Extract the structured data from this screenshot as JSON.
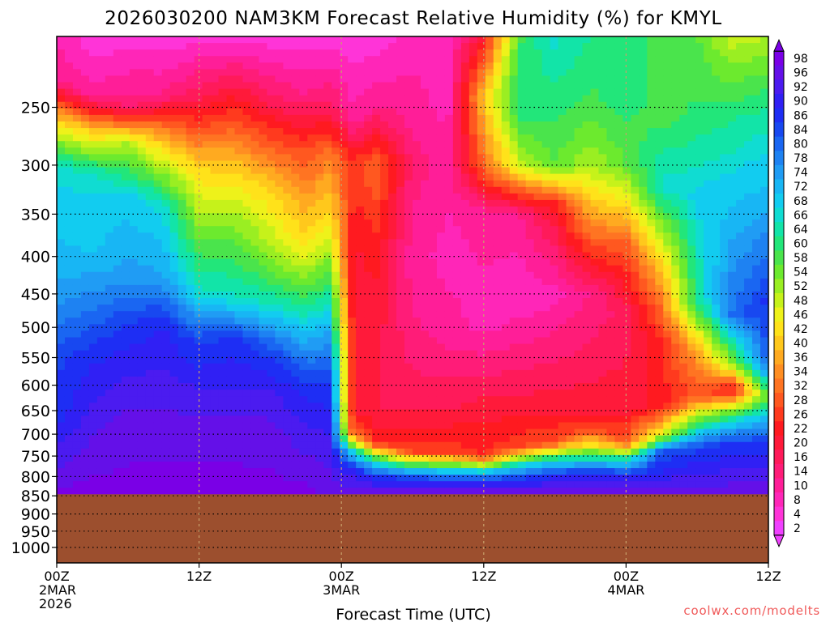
{
  "chart_data": {
    "type": "heatmap",
    "title": "2026030200 NAM3KM Forecast Relative Humidity (%) for KMYL",
    "xlabel": "Forecast Time (UTC)",
    "ylabel": "",
    "credit": "coolwx.com/modelts",
    "x_ticks": [
      {
        "hour": 0,
        "line1": "00Z",
        "line2": "2MAR",
        "line3": "2026"
      },
      {
        "hour": 12,
        "line1": "12Z",
        "line2": "",
        "line3": ""
      },
      {
        "hour": 24,
        "line1": "00Z",
        "line2": "3MAR",
        "line3": ""
      },
      {
        "hour": 36,
        "line1": "12Z",
        "line2": "",
        "line3": ""
      },
      {
        "hour": 48,
        "line1": "00Z",
        "line2": "4MAR",
        "line3": ""
      },
      {
        "hour": 60,
        "line1": "12Z",
        "line2": "",
        "line3": ""
      }
    ],
    "xlim": [
      0,
      60
    ],
    "y_ticks": [
      "250",
      "300",
      "350",
      "400",
      "450",
      "500",
      "550",
      "600",
      "650",
      "700",
      "750",
      "800",
      "850",
      "900",
      "950",
      "1000"
    ],
    "y_tick_values": [
      250,
      300,
      350,
      400,
      450,
      500,
      550,
      600,
      650,
      700,
      750,
      800,
      850,
      900,
      950,
      1000
    ],
    "ylim": [
      200,
      1050
    ],
    "y_scale": "log",
    "ground_level_hpa": 846,
    "ground_color": "#9c4f2e",
    "grid": true,
    "colorbar": {
      "labels": [
        "98",
        "96",
        "92",
        "90",
        "86",
        "84",
        "80",
        "78",
        "74",
        "72",
        "68",
        "66",
        "64",
        "60",
        "58",
        "54",
        "52",
        "48",
        "46",
        "42",
        "40",
        "36",
        "34",
        "32",
        "28",
        "26",
        "22",
        "20",
        "16",
        "14",
        "10",
        "8",
        "4",
        "2"
      ],
      "colors": [
        "#7a00e6",
        "#6410e8",
        "#4b1bf0",
        "#3020f4",
        "#1e2ef4",
        "#1848f0",
        "#1a66f2",
        "#1e82f2",
        "#209cf4",
        "#18b6f4",
        "#12ccf0",
        "#10dcd2",
        "#12e4a8",
        "#22e67a",
        "#4ae44c",
        "#6cea2e",
        "#9aee22",
        "#c6f21a",
        "#eef21a",
        "#ffe21a",
        "#ffc81c",
        "#ffaa20",
        "#ff8e22",
        "#ff7422",
        "#ff5820",
        "#ff3a1e",
        "#ff1a20",
        "#ff1a3a",
        "#ff1a5a",
        "#ff1c78",
        "#ff1e98",
        "#ff26b8",
        "#ff34d8",
        "#f040ff"
      ]
    },
    "profiles": [
      {
        "hour": 0,
        "rh": [
          [
            200,
            8
          ],
          [
            230,
            12
          ],
          [
            260,
            40
          ],
          [
            300,
            66
          ],
          [
            380,
            70
          ],
          [
            450,
            74
          ],
          [
            550,
            84
          ],
          [
            650,
            86
          ],
          [
            750,
            92
          ],
          [
            846,
            98
          ]
        ]
      },
      {
        "hour": 3,
        "rh": [
          [
            200,
            4
          ],
          [
            240,
            10
          ],
          [
            270,
            40
          ],
          [
            310,
            66
          ],
          [
            400,
            70
          ],
          [
            480,
            80
          ],
          [
            560,
            88
          ],
          [
            660,
            92
          ],
          [
            760,
            96
          ],
          [
            846,
            98
          ]
        ]
      },
      {
        "hour": 6,
        "rh": [
          [
            200,
            4
          ],
          [
            250,
            14
          ],
          [
            280,
            50
          ],
          [
            330,
            68
          ],
          [
            420,
            74
          ],
          [
            500,
            86
          ],
          [
            600,
            92
          ],
          [
            700,
            96
          ],
          [
            846,
            98
          ]
        ]
      },
      {
        "hour": 9,
        "rh": [
          [
            200,
            4
          ],
          [
            240,
            12
          ],
          [
            270,
            34
          ],
          [
            340,
            66
          ],
          [
            430,
            74
          ],
          [
            500,
            88
          ],
          [
            600,
            92
          ],
          [
            700,
            96
          ],
          [
            846,
            98
          ]
        ]
      },
      {
        "hour": 12,
        "rh": [
          [
            200,
            4
          ],
          [
            250,
            20
          ],
          [
            300,
            40
          ],
          [
            380,
            56
          ],
          [
            450,
            66
          ],
          [
            520,
            84
          ],
          [
            620,
            92
          ],
          [
            700,
            96
          ],
          [
            846,
            98
          ]
        ]
      },
      {
        "hour": 15,
        "rh": [
          [
            200,
            4
          ],
          [
            250,
            24
          ],
          [
            310,
            42
          ],
          [
            380,
            56
          ],
          [
            460,
            66
          ],
          [
            520,
            86
          ],
          [
            620,
            92
          ],
          [
            700,
            96
          ],
          [
            846,
            98
          ]
        ]
      },
      {
        "hour": 18,
        "rh": [
          [
            200,
            4
          ],
          [
            250,
            18
          ],
          [
            320,
            40
          ],
          [
            400,
            52
          ],
          [
            470,
            66
          ],
          [
            540,
            84
          ],
          [
            620,
            92
          ],
          [
            720,
            96
          ],
          [
            846,
            98
          ]
        ]
      },
      {
        "hour": 21,
        "rh": [
          [
            200,
            4
          ],
          [
            240,
            12
          ],
          [
            290,
            28
          ],
          [
            380,
            42
          ],
          [
            460,
            60
          ],
          [
            540,
            76
          ],
          [
            600,
            86
          ],
          [
            700,
            92
          ],
          [
            846,
            98
          ]
        ]
      },
      {
        "hour": 23,
        "rh": [
          [
            200,
            4
          ],
          [
            250,
            16
          ],
          [
            290,
            32
          ],
          [
            350,
            42
          ],
          [
            420,
            56
          ],
          [
            500,
            72
          ],
          [
            580,
            84
          ],
          [
            680,
            90
          ],
          [
            846,
            96
          ]
        ]
      },
      {
        "hour": 25,
        "rh": [
          [
            200,
            4
          ],
          [
            260,
            10
          ],
          [
            300,
            26
          ],
          [
            400,
            20
          ],
          [
            550,
            22
          ],
          [
            650,
            20
          ],
          [
            700,
            30
          ],
          [
            740,
            66
          ],
          [
            780,
            88
          ],
          [
            846,
            96
          ]
        ]
      },
      {
        "hour": 27,
        "rh": [
          [
            200,
            4
          ],
          [
            250,
            12
          ],
          [
            300,
            30
          ],
          [
            400,
            22
          ],
          [
            550,
            18
          ],
          [
            650,
            18
          ],
          [
            720,
            24
          ],
          [
            760,
            60
          ],
          [
            800,
            86
          ],
          [
            846,
            96
          ]
        ]
      },
      {
        "hour": 30,
        "rh": [
          [
            200,
            8
          ],
          [
            250,
            10
          ],
          [
            300,
            14
          ],
          [
            400,
            10
          ],
          [
            550,
            14
          ],
          [
            650,
            18
          ],
          [
            740,
            26
          ],
          [
            780,
            66
          ],
          [
            810,
            88
          ],
          [
            846,
            96
          ]
        ]
      },
      {
        "hour": 33,
        "rh": [
          [
            200,
            8
          ],
          [
            250,
            8
          ],
          [
            300,
            10
          ],
          [
            400,
            8
          ],
          [
            500,
            10
          ],
          [
            650,
            18
          ],
          [
            740,
            26
          ],
          [
            790,
            72
          ],
          [
            820,
            90
          ],
          [
            846,
            96
          ]
        ]
      },
      {
        "hour": 36,
        "rh": [
          [
            200,
            20
          ],
          [
            240,
            40
          ],
          [
            300,
            30
          ],
          [
            350,
            10
          ],
          [
            500,
            8
          ],
          [
            650,
            20
          ],
          [
            750,
            24
          ],
          [
            790,
            70
          ],
          [
            820,
            90
          ],
          [
            846,
            96
          ]
        ]
      },
      {
        "hour": 39,
        "rh": [
          [
            200,
            58
          ],
          [
            250,
            62
          ],
          [
            300,
            48
          ],
          [
            350,
            12
          ],
          [
            450,
            6
          ],
          [
            650,
            20
          ],
          [
            730,
            26
          ],
          [
            770,
            66
          ],
          [
            810,
            88
          ],
          [
            846,
            96
          ]
        ]
      },
      {
        "hour": 42,
        "rh": [
          [
            200,
            66
          ],
          [
            250,
            60
          ],
          [
            300,
            56
          ],
          [
            340,
            22
          ],
          [
            450,
            8
          ],
          [
            650,
            20
          ],
          [
            720,
            28
          ],
          [
            760,
            66
          ],
          [
            800,
            88
          ],
          [
            846,
            96
          ]
        ]
      },
      {
        "hour": 45,
        "rh": [
          [
            200,
            62
          ],
          [
            250,
            58
          ],
          [
            300,
            50
          ],
          [
            360,
            34
          ],
          [
            450,
            12
          ],
          [
            650,
            20
          ],
          [
            700,
            30
          ],
          [
            750,
            60
          ],
          [
            790,
            86
          ],
          [
            846,
            96
          ]
        ]
      },
      {
        "hour": 48,
        "rh": [
          [
            200,
            60
          ],
          [
            250,
            60
          ],
          [
            300,
            56
          ],
          [
            380,
            30
          ],
          [
            480,
            16
          ],
          [
            650,
            20
          ],
          [
            720,
            28
          ],
          [
            760,
            66
          ],
          [
            800,
            88
          ],
          [
            846,
            96
          ]
        ]
      },
      {
        "hour": 51,
        "rh": [
          [
            200,
            58
          ],
          [
            260,
            58
          ],
          [
            320,
            66
          ],
          [
            420,
            38
          ],
          [
            520,
            24
          ],
          [
            640,
            22
          ],
          [
            700,
            46
          ],
          [
            740,
            82
          ],
          [
            846,
            96
          ]
        ]
      },
      {
        "hour": 54,
        "rh": [
          [
            200,
            56
          ],
          [
            260,
            60
          ],
          [
            330,
            68
          ],
          [
            460,
            62
          ],
          [
            540,
            36
          ],
          [
            620,
            28
          ],
          [
            680,
            60
          ],
          [
            730,
            84
          ],
          [
            846,
            96
          ]
        ]
      },
      {
        "hour": 57,
        "rh": [
          [
            200,
            48
          ],
          [
            260,
            62
          ],
          [
            340,
            70
          ],
          [
            480,
            80
          ],
          [
            560,
            52
          ],
          [
            610,
            20
          ],
          [
            660,
            60
          ],
          [
            720,
            86
          ],
          [
            846,
            96
          ]
        ]
      },
      {
        "hour": 60,
        "rh": [
          [
            200,
            50
          ],
          [
            260,
            64
          ],
          [
            340,
            72
          ],
          [
            460,
            86
          ],
          [
            560,
            82
          ],
          [
            620,
            56
          ],
          [
            680,
            76
          ],
          [
            740,
            88
          ],
          [
            846,
            96
          ]
        ]
      }
    ]
  }
}
